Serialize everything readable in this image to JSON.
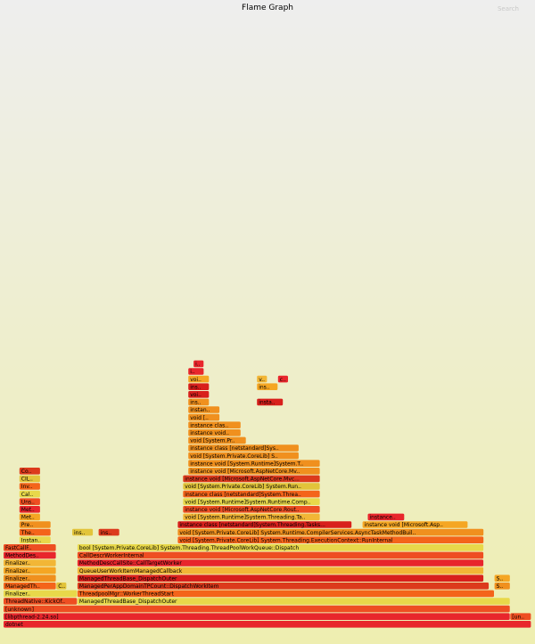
{
  "title": "Flame Graph",
  "search_label": "Search",
  "colors": [
    "#e8262c",
    "#f4641a",
    "#f0901e",
    "#f2b636",
    "#e8d84a",
    "#dc3a1c",
    "#f5a623",
    "#ee4e22",
    "#e2c43a",
    "#d8201c"
  ],
  "chart_data": {
    "type": "flame",
    "frames": [
      {
        "name": "dotnet",
        "depth": 0,
        "start": 0.0,
        "end": 1.0
      },
      {
        "name": "[libpthread-2.24.so]",
        "depth": 1,
        "start": 0.0,
        "end": 0.96
      },
      {
        "name": "[un..",
        "depth": 1,
        "start": 0.96,
        "end": 1.0
      },
      {
        "name": "[unknown]",
        "depth": 2,
        "start": 0.0,
        "end": 0.96
      },
      {
        "name": "ThreadNative::KickOffThread",
        "depth": 3,
        "start": 0.0,
        "end": 0.14
      },
      {
        "name": "ManagedThreadBase_DispatchOuter",
        "depth": 3,
        "start": 0.14,
        "end": 0.96
      },
      {
        "name": "Finalizer..",
        "depth": 4,
        "start": 0.0,
        "end": 0.14
      },
      {
        "name": "ThreadpoolMgr::WorkerThreadStart",
        "depth": 4,
        "start": 0.14,
        "end": 0.93
      },
      {
        "name": "ManagedTh..",
        "depth": 5,
        "start": 0.0,
        "end": 0.1
      },
      {
        "name": "C..",
        "depth": 5,
        "start": 0.1,
        "end": 0.12
      },
      {
        "name": "ManagedPerAppDomainTPCount::DispatchWorkItem",
        "depth": 5,
        "start": 0.14,
        "end": 0.92
      },
      {
        "name": "S..",
        "depth": 5,
        "start": 0.93,
        "end": 0.96
      },
      {
        "name": "Finalizer..",
        "depth": 6,
        "start": 0.0,
        "end": 0.1
      },
      {
        "name": "ManagedThreadBase_DispatchOuter",
        "depth": 6,
        "start": 0.14,
        "end": 0.91
      },
      {
        "name": "S..",
        "depth": 6,
        "start": 0.93,
        "end": 0.96
      },
      {
        "name": "Finalizer..",
        "depth": 7,
        "start": 0.0,
        "end": 0.1
      },
      {
        "name": "QueueUserWorkItemManagedCallback",
        "depth": 7,
        "start": 0.14,
        "end": 0.91
      },
      {
        "name": "Finalizer..",
        "depth": 8,
        "start": 0.0,
        "end": 0.1
      },
      {
        "name": "MethodDescCallSite::CallTargetWorker",
        "depth": 8,
        "start": 0.14,
        "end": 0.91
      },
      {
        "name": "MethodDes..",
        "depth": 9,
        "start": 0.0,
        "end": 0.1
      },
      {
        "name": "CallDescrWorkerInternal",
        "depth": 9,
        "start": 0.14,
        "end": 0.91
      },
      {
        "name": "FastCallF..",
        "depth": 10,
        "start": 0.0,
        "end": 0.1
      },
      {
        "name": "bool [System.Private.CoreLib] System.Threading.ThreadPoolWorkQueue::Dispatch",
        "depth": 10,
        "start": 0.14,
        "end": 0.91
      },
      {
        "name": "Instan..",
        "depth": 11,
        "start": 0.03,
        "end": 0.09
      },
      {
        "name": "void [System.Private.CoreLib] System.Threading.ExecutionContext::RunInternal",
        "depth": 11,
        "start": 0.33,
        "end": 0.91
      },
      {
        "name": "The..",
        "depth": 12,
        "start": 0.03,
        "end": 0.09
      },
      {
        "name": "inst..",
        "depth": 12,
        "start": 0.13,
        "end": 0.17
      },
      {
        "name": "ins..",
        "depth": 12,
        "start": 0.18,
        "end": 0.22
      },
      {
        "name": "void [System.Private.CoreLib] System.Runtime.CompilerServices.AsyncTaskMethodBuil..",
        "depth": 12,
        "start": 0.33,
        "end": 0.91
      },
      {
        "name": "Pre..",
        "depth": 13,
        "start": 0.03,
        "end": 0.09
      },
      {
        "name": "instance class [netstandard]System.Threading.Tasks.Task",
        "depth": 13,
        "start": 0.33,
        "end": 0.66
      },
      {
        "name": "instance void [Microsoft.Asp..",
        "depth": 13,
        "start": 0.68,
        "end": 0.88
      },
      {
        "name": "Met..",
        "depth": 14,
        "start": 0.03,
        "end": 0.07
      },
      {
        "name": "void [System.Runtime]System.Threading.Tasks.Tas..",
        "depth": 14,
        "start": 0.34,
        "end": 0.6
      },
      {
        "name": "instance void..",
        "depth": 14,
        "start": 0.69,
        "end": 0.76
      },
      {
        "name": "Met..",
        "depth": 15,
        "start": 0.03,
        "end": 0.07
      },
      {
        "name": "instance void [Microsoft.AspNetCore.Routing] Microsoft.A..",
        "depth": 15,
        "start": 0.34,
        "end": 0.6
      },
      {
        "name": "Uns..",
        "depth": 16,
        "start": 0.03,
        "end": 0.07
      },
      {
        "name": "void [System.Runtime]System.Runtime.CompilerSer..",
        "depth": 16,
        "start": 0.34,
        "end": 0.6
      },
      {
        "name": "Cal..",
        "depth": 17,
        "start": 0.03,
        "end": 0.07
      },
      {
        "name": "instance class [netstandard]System.Threading.Tasks.Task..",
        "depth": 17,
        "start": 0.34,
        "end": 0.6
      },
      {
        "name": "Inv..",
        "depth": 18,
        "start": 0.03,
        "end": 0.07
      },
      {
        "name": "void [System.Private.CoreLib] System.Runtime.CompilerSer..",
        "depth": 18,
        "start": 0.34,
        "end": 0.6
      },
      {
        "name": "CIL..",
        "depth": 19,
        "start": 0.03,
        "end": 0.07
      },
      {
        "name": "instance void [Microsoft.AspNetCore.Mvc.Core] Microsoft..",
        "depth": 19,
        "start": 0.34,
        "end": 0.6
      },
      {
        "name": "Co..",
        "depth": 20,
        "start": 0.03,
        "end": 0.07
      },
      {
        "name": "instance void [Microsoft.AspNetCore.Mvc.Core]..",
        "depth": 20,
        "start": 0.35,
        "end": 0.6
      },
      {
        "name": "instance void [System.Runtime]System.Threading..",
        "depth": 21,
        "start": 0.35,
        "end": 0.6
      },
      {
        "name": "void [System.Private.CoreLib] System..",
        "depth": 22,
        "start": 0.35,
        "end": 0.56
      },
      {
        "name": "instance class [netstandard]System.T..",
        "depth": 23,
        "start": 0.35,
        "end": 0.56
      },
      {
        "name": "void [System.Priva..",
        "depth": 24,
        "start": 0.35,
        "end": 0.46
      },
      {
        "name": "instance void [Mic..",
        "depth": 25,
        "start": 0.35,
        "end": 0.45
      },
      {
        "name": "instance class [ne..",
        "depth": 26,
        "start": 0.35,
        "end": 0.45
      },
      {
        "name": "void [System..",
        "depth": 27,
        "start": 0.35,
        "end": 0.41
      },
      {
        "name": "instance cl..",
        "depth": 28,
        "start": 0.35,
        "end": 0.41
      },
      {
        "name": "ins..",
        "depth": 29,
        "start": 0.35,
        "end": 0.39
      },
      {
        "name": "instance vo..",
        "depth": 29,
        "start": 0.48,
        "end": 0.53
      },
      {
        "name": "void [..",
        "depth": 30,
        "start": 0.35,
        "end": 0.39
      },
      {
        "name": "ins..",
        "depth": 31,
        "start": 0.35,
        "end": 0.39
      },
      {
        "name": "instance..",
        "depth": 31,
        "start": 0.48,
        "end": 0.52
      },
      {
        "name": "void [...",
        "depth": 32,
        "start": 0.35,
        "end": 0.39
      },
      {
        "name": "vo..",
        "depth": 32,
        "start": 0.48,
        "end": 0.5
      },
      {
        "name": "cl..",
        "depth": 32,
        "start": 0.52,
        "end": 0.54
      },
      {
        "name": "ins..",
        "depth": 33,
        "start": 0.35,
        "end": 0.38
      },
      {
        "name": "in..",
        "depth": 34,
        "start": 0.36,
        "end": 0.38
      }
    ]
  }
}
